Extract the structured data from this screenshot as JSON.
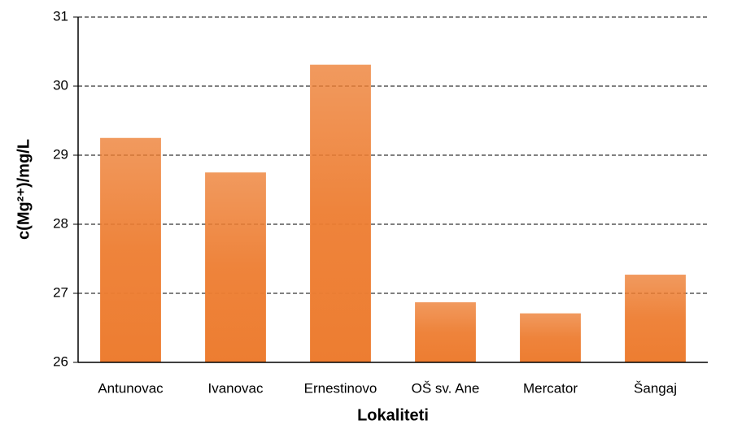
{
  "chart_data": {
    "type": "bar",
    "categories": [
      "Antunovac",
      "Ivanovac",
      "Ernestinovo",
      "OŠ sv. Ane",
      "Mercator",
      "Šangaj"
    ],
    "values": [
      29.25,
      28.75,
      30.31,
      26.87,
      26.71,
      27.27
    ],
    "color": "#ed7d31",
    "xlabel": "Lokaliteti",
    "ylabel": "c(Mg²⁺)/mg/L",
    "ylim": [
      26,
      31
    ],
    "yticks": [
      26,
      27,
      28,
      29,
      30,
      31
    ],
    "grid": true
  }
}
